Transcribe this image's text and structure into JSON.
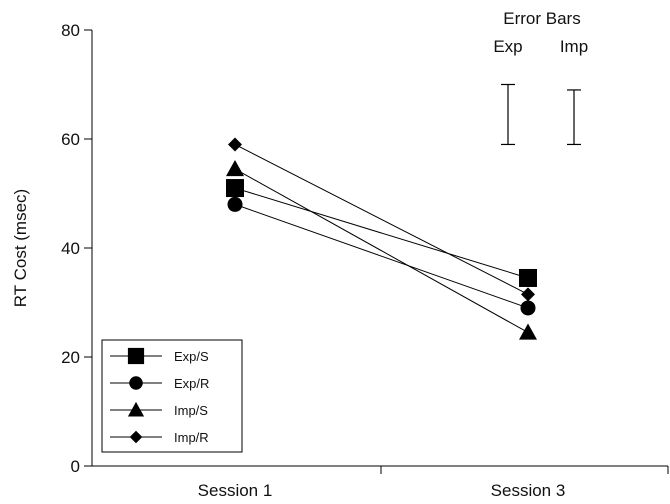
{
  "chart_data": {
    "type": "line",
    "xlabel": "",
    "ylabel": "RT Cost (msec)",
    "ylim": [
      0,
      80
    ],
    "yticks": [
      0,
      20,
      40,
      60,
      80
    ],
    "categories": [
      "Session 1",
      "Session 3"
    ],
    "series": [
      {
        "name": "Exp/S",
        "marker": "square",
        "values": [
          51,
          34.5
        ]
      },
      {
        "name": "Exp/R",
        "marker": "circle",
        "values": [
          48,
          29
        ]
      },
      {
        "name": "Imp/S",
        "marker": "triangle",
        "values": [
          54.5,
          24.5
        ]
      },
      {
        "name": "Imp/R",
        "marker": "diamond",
        "values": [
          59,
          31.5
        ]
      }
    ],
    "error_bars": {
      "title": "Error Bars",
      "items": [
        {
          "label": "Exp",
          "low": 59,
          "high": 70
        },
        {
          "label": "Imp",
          "low": 59,
          "high": 69
        }
      ]
    },
    "legend_position": "bottom-left",
    "grid": false
  }
}
